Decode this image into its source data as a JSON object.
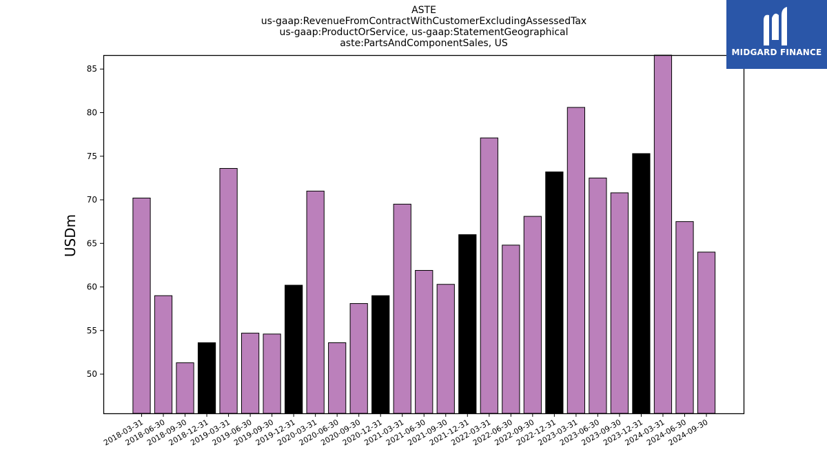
{
  "header": {
    "title_lines": [
      "ASTE",
      "us-gaap:RevenueFromContractWithCustomerExcludingAssessedTax",
      "us-gaap:ProductOrService, us-gaap:StatementGeographical",
      "aste:PartsAndComponentSales, US"
    ]
  },
  "brand": {
    "logo_text": "MIDGARD FINANCE",
    "logo_icon": "midgard-m-logo",
    "background_color": "#2a56a8"
  },
  "chart_data": {
    "type": "bar",
    "title": "ASTE",
    "subtitle": "us-gaap:RevenueFromContractWithCustomerExcludingAssessedTax us-gaap:ProductOrService, us-gaap:StatementGeographical aste:PartsAndComponentSales, US",
    "xlabel": "",
    "ylabel": "USDm",
    "ylim": [
      45.5,
      86.6
    ],
    "yticks": [
      50,
      55,
      60,
      65,
      70,
      75,
      80,
      85
    ],
    "grid": false,
    "colors": {
      "quarter": "#bb80bb",
      "year_end": "#000000",
      "edge": "#000000"
    },
    "categories": [
      "2018-03-31",
      "2018-06-30",
      "2018-09-30",
      "2018-12-31",
      "2019-03-31",
      "2019-06-30",
      "2019-09-30",
      "2019-12-31",
      "2020-03-31",
      "2020-06-30",
      "2020-09-30",
      "2020-12-31",
      "2021-03-31",
      "2021-06-30",
      "2021-09-30",
      "2021-12-31",
      "2022-03-31",
      "2022-06-30",
      "2022-09-30",
      "2022-12-31",
      "2023-03-31",
      "2023-06-30",
      "2023-09-30",
      "2023-12-31",
      "2024-03-31",
      "2024-06-30",
      "2024-09-30"
    ],
    "values": [
      70.2,
      59.0,
      51.3,
      53.6,
      73.6,
      54.7,
      54.6,
      60.2,
      71.0,
      53.6,
      58.1,
      59.0,
      69.5,
      61.9,
      60.3,
      66.0,
      77.1,
      64.8,
      68.1,
      73.2,
      80.6,
      72.5,
      70.8,
      75.3,
      86.6,
      67.5,
      64.0
    ],
    "year_end": [
      false,
      false,
      false,
      true,
      false,
      false,
      false,
      true,
      false,
      false,
      false,
      true,
      false,
      false,
      false,
      true,
      false,
      false,
      false,
      true,
      false,
      false,
      false,
      true,
      false,
      false,
      false
    ]
  }
}
